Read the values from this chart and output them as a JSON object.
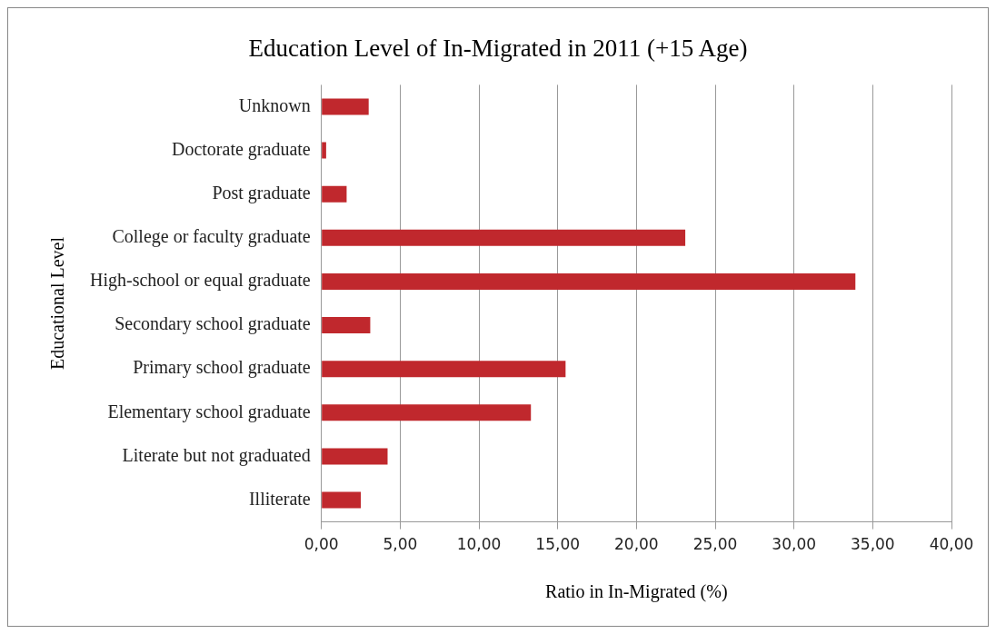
{
  "chart_data": {
    "type": "bar",
    "orientation": "horizontal",
    "title": "Education Level of In-Migrated in 2011 (+15 Age)",
    "xlabel": "Ratio in In-Migrated (%)",
    "ylabel": "Educational Level",
    "categories": [
      "Unknown",
      "Doctorate graduate",
      "Post graduate",
      "College or faculty graduate",
      "High-school or equal graduate",
      "Secondary school graduate",
      "Primary school graduate",
      "Elementary school graduate",
      "Literate but not graduated",
      "Illiterate"
    ],
    "values": [
      3.0,
      0.3,
      1.6,
      23.1,
      33.9,
      3.1,
      15.5,
      13.3,
      4.2,
      2.5
    ],
    "color": "#c0282d",
    "xlim": [
      0,
      40
    ],
    "xticks": [
      {
        "value": 0,
        "label": "0,00"
      },
      {
        "value": 5,
        "label": "5,00"
      },
      {
        "value": 10,
        "label": "10,00"
      },
      {
        "value": 15,
        "label": "15,00"
      },
      {
        "value": 20,
        "label": "20,00"
      },
      {
        "value": 25,
        "label": "25,00"
      },
      {
        "value": 30,
        "label": "30,00"
      },
      {
        "value": 35,
        "label": "35,00"
      },
      {
        "value": 40,
        "label": "40,00"
      }
    ],
    "grid": "x"
  }
}
